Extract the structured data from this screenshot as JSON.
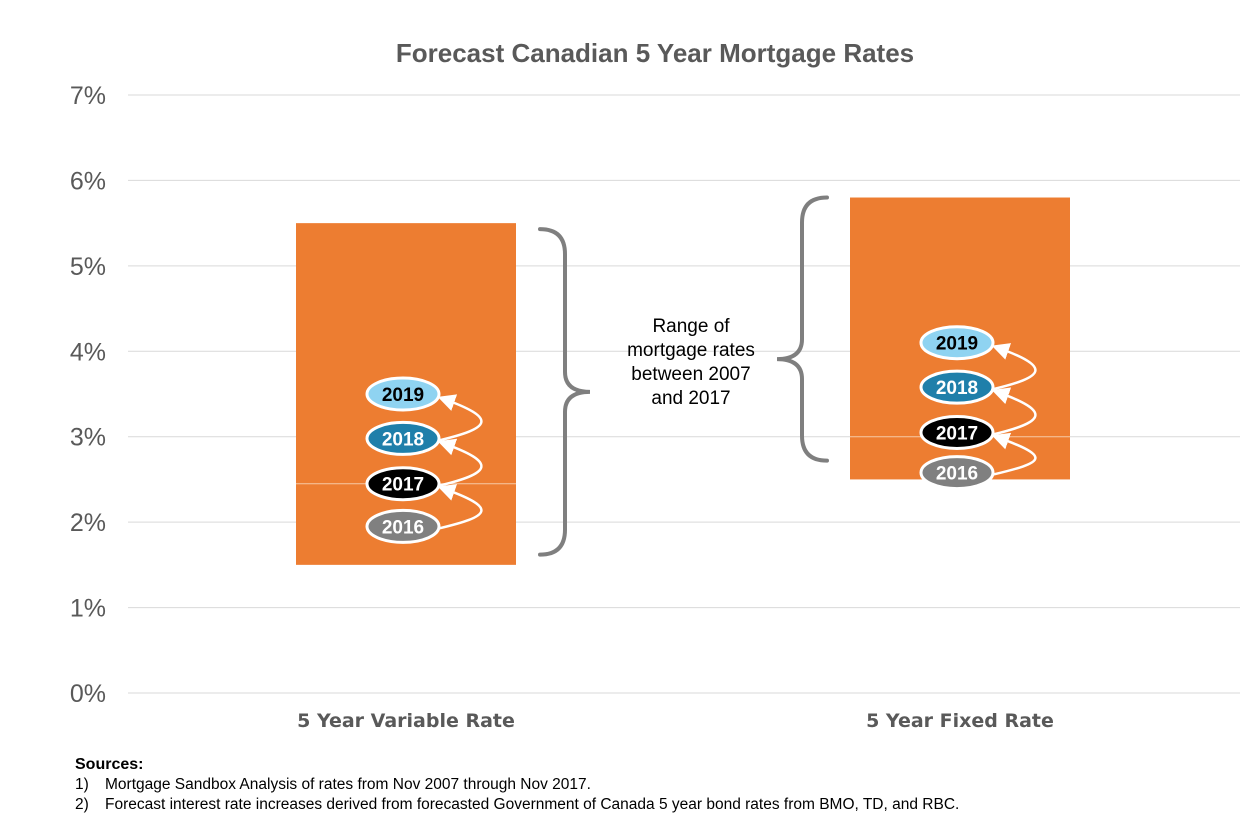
{
  "chart_data": {
    "type": "bar",
    "title": "Forecast Canadian 5 Year Mortgage Rates",
    "ylim": [
      0,
      7
    ],
    "yticks": [
      "0%",
      "1%",
      "2%",
      "3%",
      "4%",
      "5%",
      "6%",
      "7%"
    ],
    "categories": [
      "5 Year Variable Rate",
      "5 Year Fixed Rate"
    ],
    "series": [
      {
        "ranges": [
          [
            1.5,
            5.5
          ],
          [
            2.5,
            5.8
          ]
        ]
      }
    ],
    "forecast_markers": [
      {
        "category": "5 Year Variable Rate",
        "points": [
          {
            "year": "2016",
            "value": 1.95
          },
          {
            "year": "2017",
            "value": 2.45
          },
          {
            "year": "2018",
            "value": 2.98
          },
          {
            "year": "2019",
            "value": 3.5
          }
        ]
      },
      {
        "category": "5 Year Fixed Rate",
        "points": [
          {
            "year": "2016",
            "value": 2.58
          },
          {
            "year": "2017",
            "value": 3.05
          },
          {
            "year": "2018",
            "value": 3.58
          },
          {
            "year": "2019",
            "value": 4.1
          }
        ]
      }
    ],
    "annotation": "Range of mortgage rates between 2007 and 2017",
    "grid": true,
    "colors": {
      "bar": "#ED7D31",
      "2016": "#808080",
      "2017": "#000000",
      "2018": "#1F7FAA",
      "2019": "#8FD3F1",
      "grid": "#D9D9D9",
      "brace": "#7F7F7F",
      "title": "#595959"
    }
  },
  "sources": {
    "heading": "Sources:",
    "items": [
      {
        "num": "1)",
        "text": "Mortgage Sandbox Analysis of rates from Nov 2007 through Nov 2017."
      },
      {
        "num": "2)",
        "text": "Forecast interest rate increases derived from forecasted Government of Canada 5 year bond rates from BMO, TD, and RBC."
      }
    ]
  }
}
